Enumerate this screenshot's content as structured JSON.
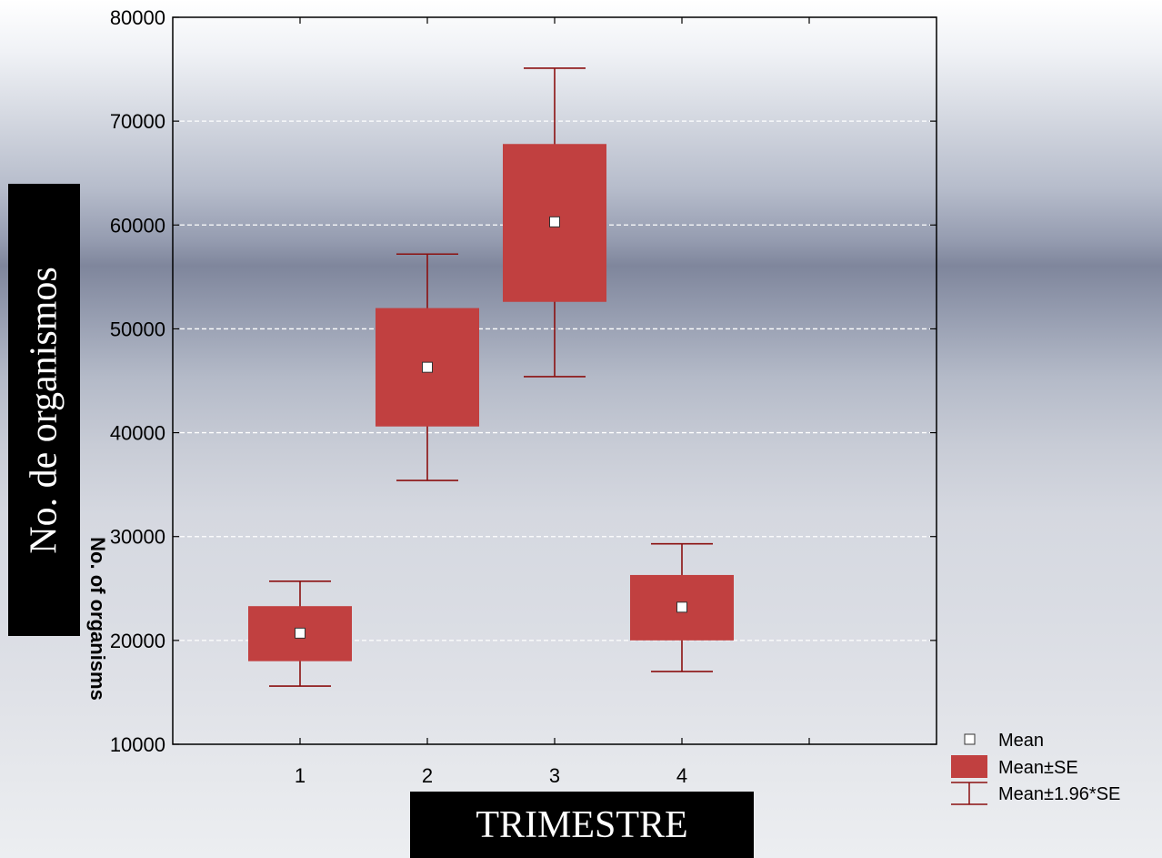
{
  "chart_data": {
    "type": "box",
    "categories": [
      "1",
      "2",
      "3",
      "4"
    ],
    "series": [
      {
        "name": "Mean",
        "values": [
          20700,
          46300,
          60300,
          23200
        ]
      },
      {
        "name": "Mean±SE",
        "low": [
          18000,
          40600,
          52600,
          20000
        ],
        "high": [
          23300,
          52000,
          67800,
          26300
        ]
      },
      {
        "name": "Mean±1.96*SE",
        "low": [
          15600,
          35400,
          45400,
          17000
        ],
        "high": [
          25700,
          57200,
          75100,
          29300
        ]
      }
    ],
    "yticks": [
      10000,
      20000,
      30000,
      40000,
      50000,
      60000,
      70000,
      80000
    ],
    "xlim": [
      0,
      6
    ],
    "ylim": [
      10000,
      80000
    ],
    "xlabel": "TRIMESTRE",
    "ylabel": "No. de organismos",
    "inner_ylabel": "No. of organisms",
    "grid": "horizontal dashed",
    "legend_position": "bottom-right",
    "colors": {
      "box": "#c14040",
      "whisker": "#8b1010",
      "mean_marker": "#ffffff",
      "grid": "#ffffff"
    }
  }
}
